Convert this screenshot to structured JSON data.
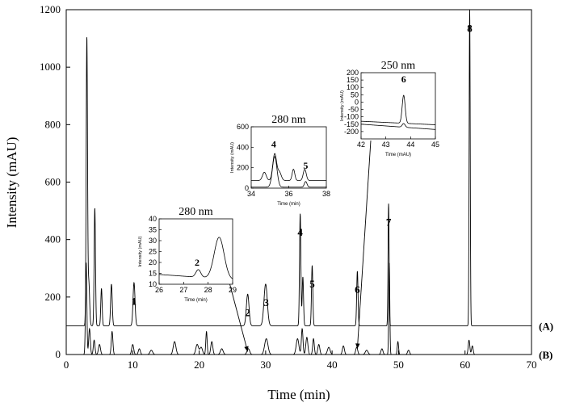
{
  "chart_data": {
    "type": "line",
    "xlabel": "Time (min)",
    "ylabel": "Intensity (mAU)",
    "xlim": [
      0,
      70
    ],
    "ylim": [
      0,
      1200
    ],
    "x_ticks": [
      "0",
      "10",
      "20",
      "30",
      "40",
      "50",
      "60",
      "70"
    ],
    "y_ticks": [
      "0",
      "200",
      "400",
      "600",
      "800",
      "1000",
      "1200"
    ],
    "grid": false,
    "series": [
      {
        "name": "(A)",
        "baseline": 100,
        "peaks": [
          {
            "x": 3.1,
            "y": 1000,
            "w": 0.1
          },
          {
            "x": 3.4,
            "y": 150,
            "w": 0.12
          },
          {
            "x": 4.3,
            "y": 410,
            "w": 0.1
          },
          {
            "x": 5.3,
            "y": 130,
            "w": 0.1
          },
          {
            "x": 6.8,
            "y": 145,
            "w": 0.12
          },
          {
            "x": 10.2,
            "y": 150,
            "w": 0.15
          },
          {
            "x": 27.3,
            "y": 110,
            "w": 0.2
          },
          {
            "x": 30.0,
            "y": 145,
            "w": 0.25
          },
          {
            "x": 35.2,
            "y": 390,
            "w": 0.1
          },
          {
            "x": 35.6,
            "y": 170,
            "w": 0.1
          },
          {
            "x": 37.0,
            "y": 210,
            "w": 0.1
          },
          {
            "x": 43.8,
            "y": 190,
            "w": 0.1
          },
          {
            "x": 48.5,
            "y": 425,
            "w": 0.08
          },
          {
            "x": 60.7,
            "y": 1100,
            "w": 0.08
          }
        ]
      },
      {
        "name": "(B)",
        "baseline": 0,
        "peaks": [
          {
            "x": 3.0,
            "y": 320,
            "w": 0.1
          },
          {
            "x": 3.5,
            "y": 90,
            "w": 0.12
          },
          {
            "x": 4.2,
            "y": 50,
            "w": 0.12
          },
          {
            "x": 5.0,
            "y": 35,
            "w": 0.15
          },
          {
            "x": 6.9,
            "y": 80,
            "w": 0.12
          },
          {
            "x": 10.0,
            "y": 35,
            "w": 0.15
          },
          {
            "x": 11.0,
            "y": 20,
            "w": 0.15
          },
          {
            "x": 12.8,
            "y": 15,
            "w": 0.2
          },
          {
            "x": 16.3,
            "y": 45,
            "w": 0.2
          },
          {
            "x": 19.7,
            "y": 35,
            "w": 0.2
          },
          {
            "x": 20.3,
            "y": 25,
            "w": 0.2
          },
          {
            "x": 21.1,
            "y": 80,
            "w": 0.1
          },
          {
            "x": 21.9,
            "y": 45,
            "w": 0.15
          },
          {
            "x": 23.4,
            "y": 20,
            "w": 0.2
          },
          {
            "x": 27.4,
            "y": 20,
            "w": 0.2
          },
          {
            "x": 30.1,
            "y": 55,
            "w": 0.25
          },
          {
            "x": 34.8,
            "y": 55,
            "w": 0.2
          },
          {
            "x": 35.5,
            "y": 90,
            "w": 0.12
          },
          {
            "x": 36.2,
            "y": 60,
            "w": 0.15
          },
          {
            "x": 37.2,
            "y": 55,
            "w": 0.12
          },
          {
            "x": 38.0,
            "y": 35,
            "w": 0.15
          },
          {
            "x": 39.5,
            "y": 25,
            "w": 0.2
          },
          {
            "x": 41.7,
            "y": 30,
            "w": 0.15
          },
          {
            "x": 43.7,
            "y": 25,
            "w": 0.15
          },
          {
            "x": 45.2,
            "y": 15,
            "w": 0.2
          },
          {
            "x": 47.5,
            "y": 20,
            "w": 0.15
          },
          {
            "x": 48.6,
            "y": 320,
            "w": 0.08
          },
          {
            "x": 49.9,
            "y": 45,
            "w": 0.1
          },
          {
            "x": 51.5,
            "y": 15,
            "w": 0.15
          },
          {
            "x": 60.6,
            "y": 50,
            "w": 0.12
          },
          {
            "x": 61.1,
            "y": 30,
            "w": 0.12
          }
        ]
      }
    ],
    "peak_labels": [
      {
        "text": "1",
        "x": 10.2,
        "y": 162
      },
      {
        "text": "2",
        "x": 27.3,
        "y": 122
      },
      {
        "text": "3",
        "x": 30.1,
        "y": 158
      },
      {
        "text": "4",
        "x": 35.2,
        "y": 402
      },
      {
        "text": "5",
        "x": 37.0,
        "y": 222
      },
      {
        "text": "6",
        "x": 43.8,
        "y": 202
      },
      {
        "text": "7",
        "x": 48.5,
        "y": 437
      },
      {
        "text": "8",
        "x": 60.7,
        "y": 1112
      }
    ],
    "insets": [
      {
        "title": "280 nm",
        "xlabel": "Time  (min)",
        "ylabel": "Intensity (mAU)",
        "xlim": [
          26,
          29
        ],
        "ylim": [
          10,
          40
        ],
        "x_ticks": [
          "26",
          "27",
          "28",
          "29"
        ],
        "y_ticks": [
          "10",
          "15",
          "20",
          "25",
          "30",
          "35",
          "40"
        ],
        "peak_label": {
          "text": "2",
          "x": 27.55,
          "y": 18.5
        },
        "pointer_to": {
          "x": 27.3,
          "y": 10
        },
        "curves": [
          {
            "base": 14.5,
            "slope": -0.8,
            "peaks": [
              {
                "x": 27.6,
                "y": 3.5,
                "w": 0.1
              },
              {
                "x": 28.45,
                "y": 19,
                "w": 0.2
              }
            ]
          }
        ]
      },
      {
        "title": "280 nm",
        "xlabel": "Time  (min)",
        "ylabel": "Intensity (mAU)",
        "xlim": [
          34,
          38
        ],
        "ylim": [
          0,
          600
        ],
        "x_ticks": [
          "34",
          "36",
          "38"
        ],
        "y_ticks": [
          "0",
          "200",
          "400",
          "600"
        ],
        "peak_label": {
          "text": "4",
          "x": 35.2,
          "y": 400
        },
        "peak_label_2": {
          "text": "5",
          "x": 36.9,
          "y": 190
        },
        "curves": [
          {
            "base": 75,
            "slope": 0,
            "peaks": [
              {
                "x": 34.7,
                "y": 80,
                "w": 0.1
              },
              {
                "x": 35.25,
                "y": 260,
                "w": 0.1
              },
              {
                "x": 35.5,
                "y": 80,
                "w": 0.1
              },
              {
                "x": 36.25,
                "y": 110,
                "w": 0.07
              },
              {
                "x": 36.85,
                "y": 110,
                "w": 0.08
              }
            ]
          },
          {
            "base": 10,
            "slope": 0,
            "peaks": [
              {
                "x": 35.25,
                "y": 300,
                "w": 0.12
              },
              {
                "x": 36.9,
                "y": 55,
                "w": 0.07
              }
            ]
          }
        ]
      },
      {
        "title": "250 nm",
        "xlabel": "Time  (mAU)",
        "ylabel": "Intensity (mAU)",
        "xlim": [
          42,
          45
        ],
        "ylim": [
          -250,
          200
        ],
        "x_ticks": [
          "42",
          "43",
          "44",
          "45"
        ],
        "y_ticks": [
          "-200",
          "-150",
          "-100",
          "-50",
          "0",
          "50",
          "100",
          "150",
          "200"
        ],
        "peak_label": {
          "text": "6",
          "x": 43.72,
          "y": 135
        },
        "pointer_to": {
          "x": 43.8,
          "y": 20
        },
        "curves": [
          {
            "base": -130,
            "slope": -8,
            "peaks": [
              {
                "x": 43.72,
                "y": 190,
                "w": 0.06
              }
            ]
          },
          {
            "base": -150,
            "slope": -12,
            "peaks": [
              {
                "x": 43.72,
                "y": 25,
                "w": 0.06
              }
            ]
          }
        ]
      }
    ]
  }
}
